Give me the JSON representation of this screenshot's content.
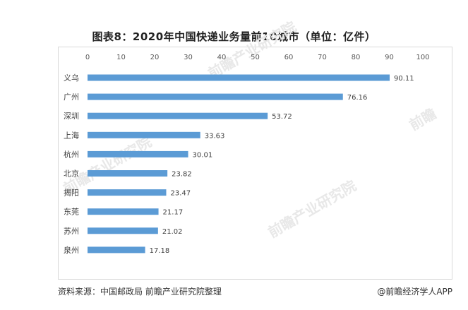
{
  "chart_data": {
    "type": "bar",
    "orientation": "horizontal",
    "title": "图表8：2020年中国快递业务量前10城市（单位：亿件）",
    "categories": [
      "义乌",
      "广州",
      "深圳",
      "上海",
      "杭州",
      "北京",
      "揭阳",
      "东莞",
      "苏州",
      "泉州"
    ],
    "values": [
      90.11,
      76.16,
      53.72,
      33.63,
      30.01,
      23.82,
      23.47,
      21.17,
      21.02,
      17.18
    ],
    "value_labels": [
      "90.11",
      "76.16",
      "53.72",
      "33.63",
      "30.01",
      "23.82",
      "23.47",
      "21.17",
      "21.02",
      "17.18"
    ],
    "xlim": [
      0,
      100
    ],
    "xticks": [
      "0",
      "10",
      "20",
      "30",
      "40",
      "50",
      "60",
      "70",
      "80",
      "90",
      "100"
    ],
    "x_axis_position": "top",
    "grid": false,
    "bar_color": "#5b9bd5"
  },
  "footer": {
    "source": "资料来源：中国邮政局 前瞻产业研究院整理",
    "credit": "@前瞻经济学人APP"
  },
  "watermarks": [
    "前瞻产业研究院",
    "前瞻产业研究院",
    "前瞻产业研究院",
    "前瞻"
  ]
}
